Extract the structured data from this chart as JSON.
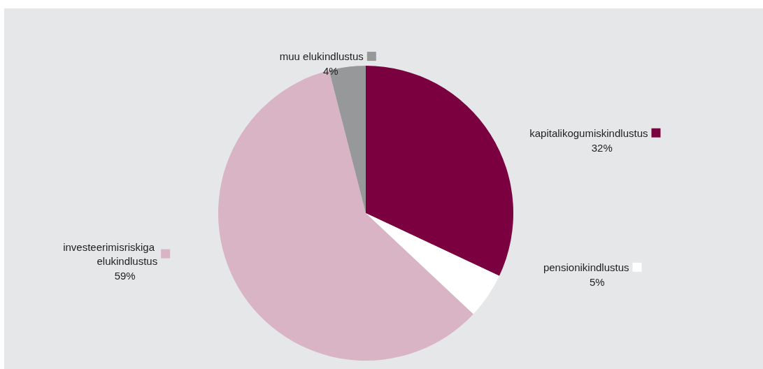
{
  "chart_data": {
    "type": "pie",
    "categories": [
      "kapitalikogumiskindlustus",
      "pensionikindlustus",
      "investeerimisriskiga elukindlustus",
      "muu elukindlustus"
    ],
    "values": [
      32,
      5,
      59,
      4
    ],
    "value_labels": [
      "32%",
      "5%",
      "59%",
      "4%"
    ],
    "colors": [
      "#7a0040",
      "#ffffff",
      "#d8b4c5",
      "#97989a"
    ],
    "legend": "top left"
  }
}
